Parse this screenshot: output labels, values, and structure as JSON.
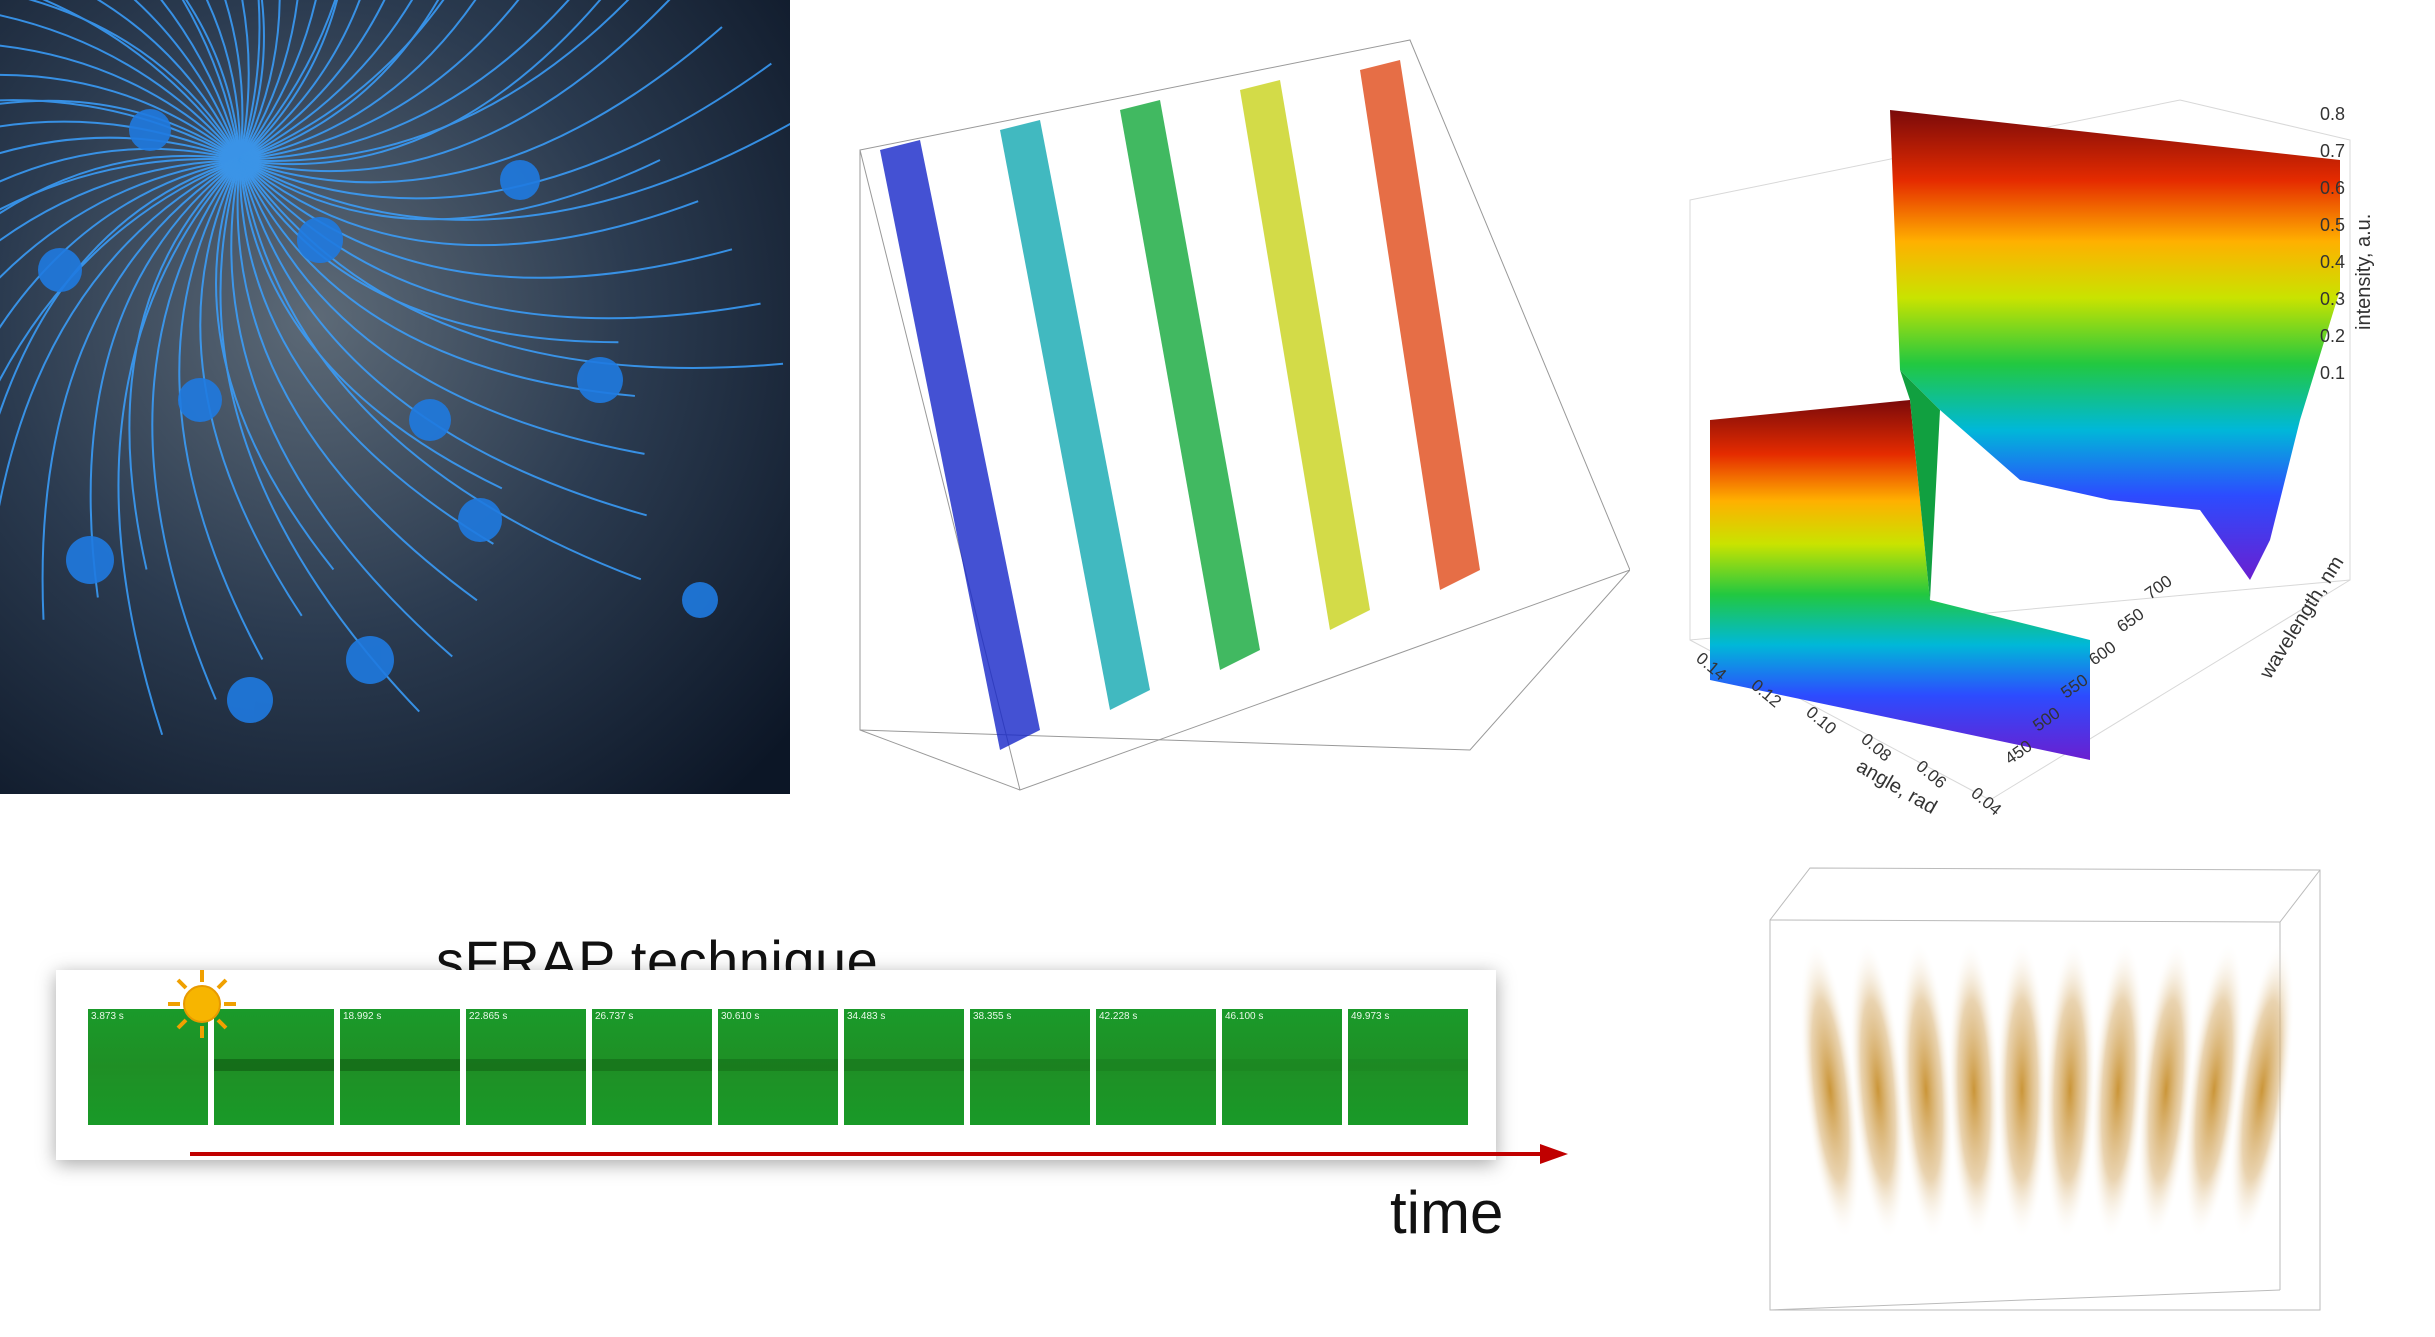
{
  "panels": {
    "microscopy": {
      "name": "Blue fibrous microscopy image"
    },
    "volume3d": {
      "name": "3D confocal volume with colored stripes"
    },
    "surface": {
      "name": "3D intensity surface plot",
      "z_axis_label": "intensity, a.u.",
      "z_ticks": [
        "0.8",
        "0.7",
        "0.6",
        "0.5",
        "0.4",
        "0.3",
        "0.2",
        "0.1"
      ],
      "x_axis_label": "angle, rad",
      "x_ticks": [
        "0.14",
        "0.12",
        "0.10",
        "0.08",
        "0.06",
        "0.04"
      ],
      "y_axis_label": "wavelength, nm",
      "y_ticks": [
        "700",
        "650",
        "600",
        "550",
        "500",
        "450"
      ]
    },
    "sfrap": {
      "title": "sFRAP technique",
      "time_label": "time",
      "frame_times": [
        "3.873 s",
        "",
        "18.992 s",
        "22.865 s",
        "26.737 s",
        "30.610 s",
        "34.483 s",
        "38.355 s",
        "42.228 s",
        "46.100 s",
        "49.973 s"
      ]
    },
    "volume2": {
      "name": "Golden striped 3D volume render"
    }
  },
  "colors": {
    "micro_bg": "#0a1a2e",
    "micro_fiber": "#3aa0ff",
    "frame_green": "#1b9427",
    "arrow_red": "#c00000",
    "sun_yellow": "#f7b500"
  }
}
